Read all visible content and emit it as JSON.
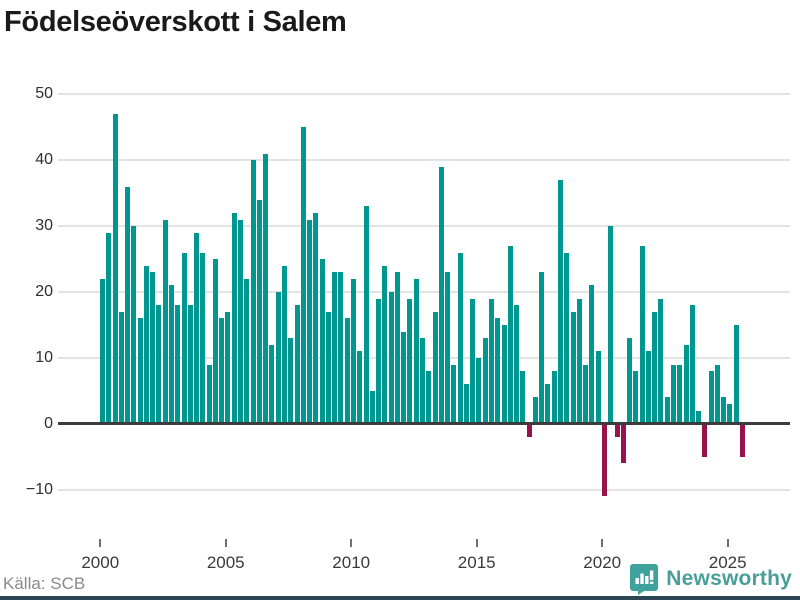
{
  "title": "Födelseöverskott i Salem",
  "source": {
    "label": "Källa: SCB"
  },
  "brand": {
    "name": "Newsworthy",
    "icon": "newsworthy-speech-bubble-chart-icon",
    "text_color": "#4a9e99",
    "footer_bar_color": "#2d4656"
  },
  "colors": {
    "positive_bar": "#009790",
    "negative_bar": "#97134d",
    "grid": "#e3e3e3",
    "zero_line": "#3c3c3c",
    "y_label_text": "#2e2e2e",
    "x_label_text": "#3a3a3a",
    "source_text": "#8a8a8a",
    "title_text": "#1a1a1a"
  },
  "chart_data": {
    "type": "bar",
    "title": "Födelseöverskott i Salem",
    "frequency": "quarterly",
    "start": "2000Q1",
    "end": "2025Q3",
    "xlabel": "",
    "ylabel": "",
    "ylim": [
      -13,
      53
    ],
    "grid": true,
    "y_ticks": [
      50,
      40,
      30,
      20,
      10,
      0,
      -10
    ],
    "x_tick_years": [
      2000,
      2005,
      2010,
      2015,
      2020,
      2025
    ],
    "values": [
      22,
      29,
      47,
      17,
      36,
      30,
      16,
      24,
      23,
      18,
      31,
      21,
      18,
      26,
      18,
      29,
      26,
      9,
      25,
      16,
      17,
      32,
      31,
      22,
      40,
      34,
      41,
      12,
      20,
      24,
      13,
      18,
      45,
      31,
      32,
      25,
      17,
      23,
      23,
      16,
      22,
      11,
      33,
      5,
      19,
      24,
      20,
      23,
      14,
      19,
      22,
      13,
      8,
      17,
      39,
      23,
      9,
      26,
      6,
      19,
      10,
      13,
      19,
      16,
      15,
      27,
      18,
      8,
      -2,
      4,
      23,
      6,
      8,
      37,
      26,
      17,
      19,
      9,
      21,
      11,
      -11,
      30,
      -2,
      -6,
      13,
      8,
      27,
      11,
      17,
      19,
      4,
      9,
      9,
      12,
      18,
      2,
      -5,
      8,
      9,
      4,
      3,
      15,
      -5
    ]
  }
}
